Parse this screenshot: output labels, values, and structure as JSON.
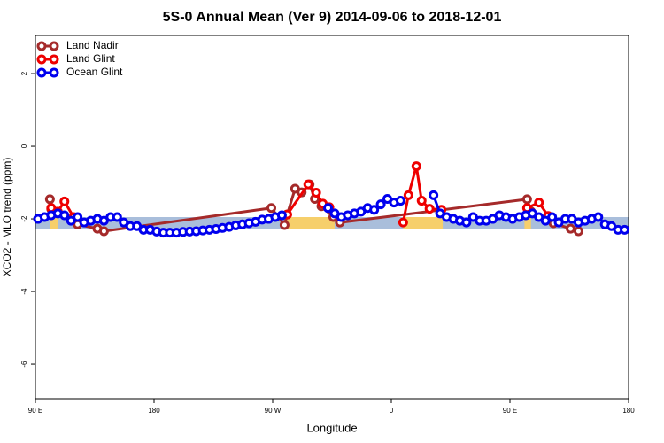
{
  "chart_data": {
    "type": "line",
    "title": "5S-0 Annual Mean (Ver 9)   2014-09-06 to 2018-12-01",
    "xlabel": "Longitude",
    "ylabel": "XCO2 - MLO trend (ppm)",
    "xlim": [
      90,
      540
    ],
    "ylim": [
      -6.95,
      3.05
    ],
    "xticks": [
      {
        "value": 90,
        "label": "90 E"
      },
      180,
      {
        "value": 270,
        "label": "90 W"
      },
      {
        "value": 360,
        "label": "0"
      },
      {
        "value": 450,
        "label": "90 E"
      },
      {
        "value": 540,
        "label": "180"
      }
    ],
    "yticks": [
      2,
      0,
      -2,
      -4,
      -6
    ],
    "legend": "top-left",
    "band": {
      "ylim": [
        -2.27,
        -1.95
      ],
      "color": "#a9bedb"
    },
    "land_spans": {
      "color": "#f6cf6b",
      "ranges": [
        [
          101,
          107
        ],
        [
          279,
          317
        ],
        [
          369,
          399
        ],
        [
          461,
          466
        ]
      ]
    },
    "series": [
      {
        "name": "Land Nadir",
        "color": "#a52a2a",
        "x": [
          101,
          102,
          122,
          137,
          142,
          269,
          279,
          281,
          287,
          292,
          298,
          302,
          307,
          316,
          321,
          463,
          466,
          483,
          496,
          502
        ],
        "values": [
          -1.46,
          -1.73,
          -2.15,
          -2.27,
          -2.34,
          -1.7,
          -2.17,
          -1.88,
          -1.17,
          -1.27,
          -1.05,
          -1.45,
          -1.65,
          -1.95,
          -2.1,
          -1.46,
          -1.8,
          -2.12,
          -2.27,
          -2.34
        ]
      },
      {
        "name": "Land Glint",
        "color": "#ee0000",
        "x": [
          102,
          107,
          112,
          119,
          200,
          281,
          297,
          303,
          308,
          313,
          350,
          369,
          373,
          379,
          383,
          389,
          398,
          430,
          463,
          472,
          479
        ],
        "values": [
          -1.7,
          -1.8,
          -1.52,
          -1.95,
          null,
          -1.88,
          -1.05,
          -1.28,
          -1.58,
          -1.68,
          null,
          -2.1,
          -1.35,
          -0.55,
          -1.5,
          -1.72,
          -1.75,
          null,
          -1.7,
          -1.55,
          -1.92
        ]
      },
      {
        "name": "Ocean Glint",
        "color": "#0000ee",
        "x": [
          92,
          97,
          102,
          107,
          112,
          117,
          122,
          127,
          132,
          137,
          142,
          147,
          152,
          157,
          162,
          167,
          172,
          177,
          182,
          187,
          192,
          197,
          202,
          207,
          212,
          217,
          222,
          227,
          232,
          237,
          242,
          247,
          252,
          257,
          262,
          267,
          272,
          277,
          282,
          312,
          317,
          322,
          327,
          332,
          337,
          342,
          347,
          352,
          357,
          362,
          367,
          380,
          392,
          397,
          402,
          407,
          412,
          417,
          422,
          427,
          432,
          437,
          442,
          447,
          452,
          457,
          462,
          467,
          472,
          477,
          482,
          487,
          492,
          497,
          502,
          507,
          512,
          517,
          522,
          527,
          532,
          537
        ],
        "values": [
          -2.0,
          -1.95,
          -1.9,
          -1.85,
          -1.9,
          -2.05,
          -1.95,
          -2.1,
          -2.05,
          -2.0,
          -2.05,
          -1.95,
          -1.95,
          -2.1,
          -2.2,
          -2.2,
          -2.3,
          -2.3,
          -2.35,
          -2.38,
          -2.38,
          -2.38,
          -2.36,
          -2.35,
          -2.34,
          -2.32,
          -2.3,
          -2.28,
          -2.25,
          -2.22,
          -2.18,
          -2.15,
          -2.12,
          -2.08,
          -2.02,
          -2.0,
          -1.95,
          -1.9,
          null,
          -1.7,
          -1.85,
          -1.95,
          -1.9,
          -1.85,
          -1.8,
          -1.7,
          -1.75,
          -1.6,
          -1.45,
          -1.55,
          -1.5,
          null,
          -1.35,
          -1.85,
          -1.95,
          -2.0,
          -2.05,
          -2.1,
          -1.95,
          -2.05,
          -2.05,
          -2.0,
          -1.9,
          -1.95,
          -2.0,
          -1.95,
          -1.9,
          -1.85,
          -1.95,
          -2.05,
          -1.95,
          -2.1,
          -2.0,
          -2.0,
          -2.1,
          -2.05,
          -2.0,
          -1.95,
          -2.15,
          -2.2,
          -2.3,
          -2.3
        ]
      }
    ]
  }
}
